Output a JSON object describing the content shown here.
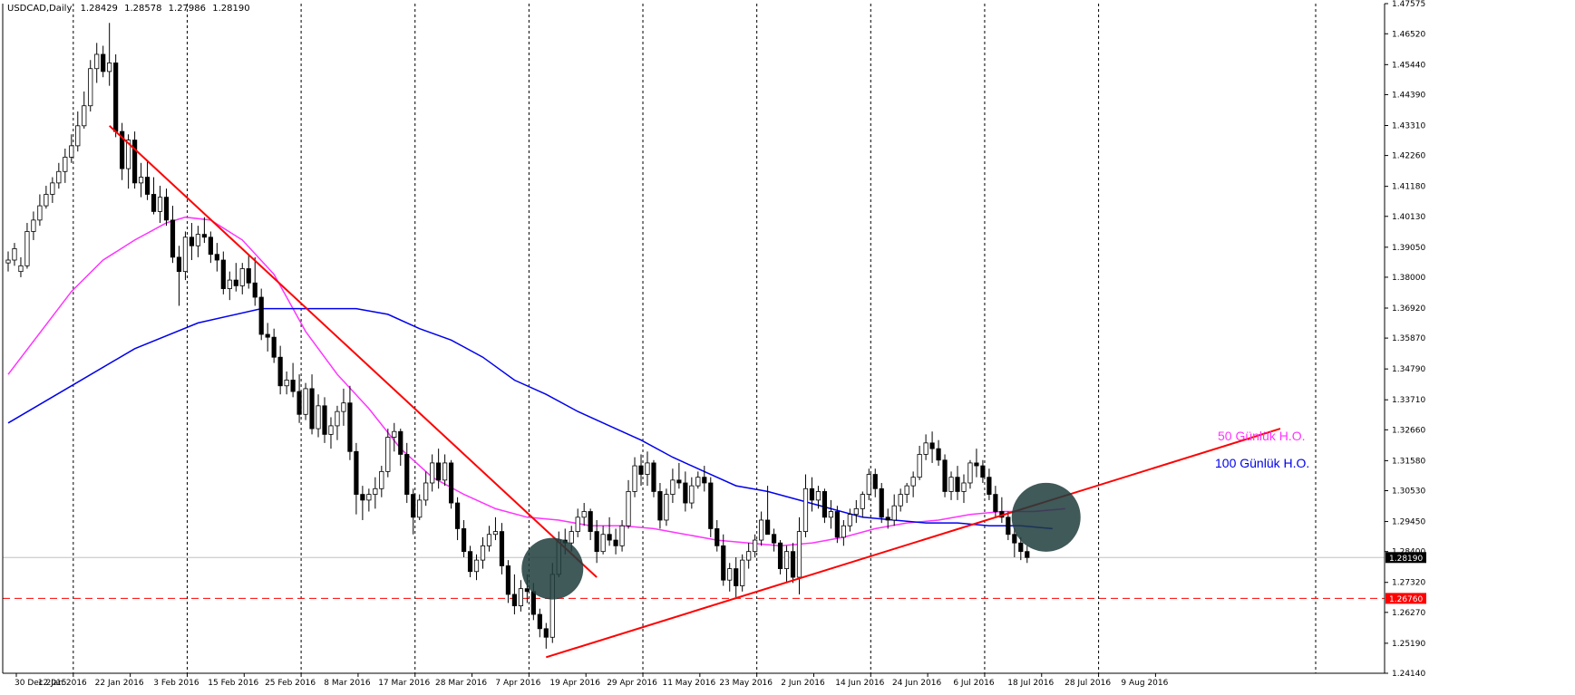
{
  "header": {
    "symbol": "USDCAD,Daily",
    "open": "1.28429",
    "high": "1.28578",
    "low": "1.27986",
    "close": "1.28190"
  },
  "chart_data": {
    "type": "candlestick",
    "x_ticks": [
      "30 Dec 2015",
      "12 Jan 2016",
      "22 Jan 2016",
      "3 Feb 2016",
      "15 Feb 2016",
      "25 Feb 2016",
      "8 Mar 2016",
      "17 Mar 2016",
      "28 Mar 2016",
      "7 Apr 2016",
      "19 Apr 2016",
      "29 Apr 2016",
      "11 May 2016",
      "23 May 2016",
      "2 Jun 2016",
      "14 Jun 2016",
      "24 Jun 2016",
      "6 Jul 2016",
      "18 Jul 2016",
      "28 Jul 2016",
      "9 Aug 2016"
    ],
    "y_ticks": [
      "1.47575",
      "1.46520",
      "1.45440",
      "1.44390",
      "1.43310",
      "1.42260",
      "1.41180",
      "1.40130",
      "1.39050",
      "1.38000",
      "1.36920",
      "1.35870",
      "1.34790",
      "1.33710",
      "1.32660",
      "1.31580",
      "1.30530",
      "1.29450",
      "1.28400",
      "1.27320",
      "1.26270",
      "1.25190",
      "1.24140"
    ],
    "ylim": [
      1.2414,
      1.47575
    ],
    "candles": [
      [
        1.385,
        1.389,
        1.382,
        1.386
      ],
      [
        1.386,
        1.392,
        1.384,
        1.39
      ],
      [
        1.382,
        1.387,
        1.38,
        1.384
      ],
      [
        1.384,
        1.399,
        1.383,
        1.396
      ],
      [
        1.396,
        1.403,
        1.393,
        1.4
      ],
      [
        1.4,
        1.409,
        1.398,
        1.405
      ],
      [
        1.405,
        1.412,
        1.404,
        1.409
      ],
      [
        1.409,
        1.415,
        1.406,
        1.413
      ],
      [
        1.413,
        1.42,
        1.411,
        1.417
      ],
      [
        1.417,
        1.425,
        1.413,
        1.422
      ],
      [
        1.422,
        1.43,
        1.42,
        1.426
      ],
      [
        1.426,
        1.438,
        1.424,
        1.433
      ],
      [
        1.433,
        1.445,
        1.432,
        1.44
      ],
      [
        1.44,
        1.456,
        1.438,
        1.453
      ],
      [
        1.453,
        1.462,
        1.448,
        1.458
      ],
      [
        1.458,
        1.461,
        1.45,
        1.452
      ],
      [
        1.452,
        1.469,
        1.447,
        1.455
      ],
      [
        1.455,
        1.458,
        1.429,
        1.431
      ],
      [
        1.431,
        1.434,
        1.414,
        1.418
      ],
      [
        1.418,
        1.43,
        1.411,
        1.428
      ],
      [
        1.428,
        1.431,
        1.411,
        1.413
      ],
      [
        1.413,
        1.42,
        1.408,
        1.415
      ],
      [
        1.415,
        1.421,
        1.407,
        1.409
      ],
      [
        1.409,
        1.415,
        1.402,
        1.403
      ],
      [
        1.403,
        1.412,
        1.399,
        1.408
      ],
      [
        1.408,
        1.411,
        1.398,
        1.4
      ],
      [
        1.4,
        1.405,
        1.385,
        1.387
      ],
      [
        1.387,
        1.391,
        1.37,
        1.382
      ],
      [
        1.382,
        1.396,
        1.379,
        1.394
      ],
      [
        1.394,
        1.399,
        1.386,
        1.391
      ],
      [
        1.391,
        1.398,
        1.387,
        1.395
      ],
      [
        1.395,
        1.401,
        1.392,
        1.394
      ],
      [
        1.394,
        1.396,
        1.385,
        1.388
      ],
      [
        1.388,
        1.392,
        1.382,
        1.386
      ],
      [
        1.386,
        1.389,
        1.374,
        1.376
      ],
      [
        1.376,
        1.382,
        1.372,
        1.379
      ],
      [
        1.379,
        1.385,
        1.375,
        1.377
      ],
      [
        1.377,
        1.385,
        1.374,
        1.383
      ],
      [
        1.383,
        1.388,
        1.376,
        1.378
      ],
      [
        1.378,
        1.387,
        1.37,
        1.373
      ],
      [
        1.373,
        1.376,
        1.358,
        1.36
      ],
      [
        1.36,
        1.364,
        1.354,
        1.359
      ],
      [
        1.359,
        1.362,
        1.35,
        1.352
      ],
      [
        1.352,
        1.356,
        1.339,
        1.342
      ],
      [
        1.342,
        1.347,
        1.339,
        1.344
      ],
      [
        1.344,
        1.35,
        1.338,
        1.34
      ],
      [
        1.34,
        1.346,
        1.329,
        1.332
      ],
      [
        1.332,
        1.343,
        1.33,
        1.341
      ],
      [
        1.341,
        1.346,
        1.325,
        1.327
      ],
      [
        1.327,
        1.339,
        1.324,
        1.335
      ],
      [
        1.335,
        1.338,
        1.322,
        1.325
      ],
      [
        1.325,
        1.331,
        1.32,
        1.328
      ],
      [
        1.328,
        1.335,
        1.323,
        1.333
      ],
      [
        1.333,
        1.341,
        1.328,
        1.336
      ],
      [
        1.336,
        1.342,
        1.316,
        1.319
      ],
      [
        1.319,
        1.322,
        1.297,
        1.304
      ],
      [
        1.304,
        1.307,
        1.295,
        1.302
      ],
      [
        1.302,
        1.306,
        1.298,
        1.304
      ],
      [
        1.304,
        1.31,
        1.299,
        1.306
      ],
      [
        1.306,
        1.314,
        1.303,
        1.312
      ],
      [
        1.312,
        1.327,
        1.31,
        1.324
      ],
      [
        1.324,
        1.329,
        1.319,
        1.326
      ],
      [
        1.326,
        1.327,
        1.314,
        1.318
      ],
      [
        1.318,
        1.322,
        1.301,
        1.304
      ],
      [
        1.304,
        1.306,
        1.29,
        1.296
      ],
      [
        1.296,
        1.304,
        1.295,
        1.302
      ],
      [
        1.302,
        1.312,
        1.3,
        1.308
      ],
      [
        1.308,
        1.318,
        1.305,
        1.315
      ],
      [
        1.315,
        1.32,
        1.306,
        1.309
      ],
      [
        1.309,
        1.318,
        1.307,
        1.315
      ],
      [
        1.315,
        1.316,
        1.299,
        1.301
      ],
      [
        1.301,
        1.303,
        1.288,
        1.292
      ],
      [
        1.292,
        1.295,
        1.282,
        1.284
      ],
      [
        1.284,
        1.286,
        1.275,
        1.277
      ],
      [
        1.277,
        1.283,
        1.274,
        1.281
      ],
      [
        1.281,
        1.289,
        1.278,
        1.286
      ],
      [
        1.286,
        1.293,
        1.284,
        1.29
      ],
      [
        1.29,
        1.296,
        1.288,
        1.291
      ],
      [
        1.291,
        1.294,
        1.276,
        1.279
      ],
      [
        1.279,
        1.281,
        1.266,
        1.269
      ],
      [
        1.269,
        1.276,
        1.262,
        1.265
      ],
      [
        1.265,
        1.274,
        1.263,
        1.271
      ],
      [
        1.271,
        1.276,
        1.266,
        1.27
      ],
      [
        1.27,
        1.273,
        1.26,
        1.262
      ],
      [
        1.262,
        1.264,
        1.254,
        1.257
      ],
      [
        1.257,
        1.259,
        1.25,
        1.254
      ],
      [
        1.254,
        1.28,
        1.252,
        1.276
      ],
      [
        1.276,
        1.291,
        1.275,
        1.288
      ],
      [
        1.288,
        1.292,
        1.283,
        1.287
      ],
      [
        1.287,
        1.293,
        1.284,
        1.291
      ],
      [
        1.291,
        1.299,
        1.289,
        1.296
      ],
      [
        1.296,
        1.301,
        1.293,
        1.298
      ],
      [
        1.298,
        1.299,
        1.288,
        1.291
      ],
      [
        1.291,
        1.295,
        1.28,
        1.284
      ],
      [
        1.284,
        1.293,
        1.283,
        1.29
      ],
      [
        1.29,
        1.296,
        1.286,
        1.288
      ],
      [
        1.288,
        1.292,
        1.283,
        1.286
      ],
      [
        1.286,
        1.295,
        1.284,
        1.293
      ],
      [
        1.293,
        1.309,
        1.292,
        1.305
      ],
      [
        1.305,
        1.317,
        1.303,
        1.314
      ],
      [
        1.314,
        1.318,
        1.307,
        1.311
      ],
      [
        1.311,
        1.319,
        1.307,
        1.315
      ],
      [
        1.315,
        1.316,
        1.303,
        1.305
      ],
      [
        1.305,
        1.308,
        1.292,
        1.295
      ],
      [
        1.295,
        1.306,
        1.293,
        1.304
      ],
      [
        1.304,
        1.313,
        1.301,
        1.309
      ],
      [
        1.309,
        1.315,
        1.306,
        1.308
      ],
      [
        1.308,
        1.312,
        1.298,
        1.301
      ],
      [
        1.301,
        1.31,
        1.299,
        1.307
      ],
      [
        1.307,
        1.312,
        1.306,
        1.31
      ],
      [
        1.31,
        1.314,
        1.305,
        1.308
      ],
      [
        1.308,
        1.31,
        1.289,
        1.292
      ],
      [
        1.292,
        1.295,
        1.284,
        1.286
      ],
      [
        1.286,
        1.29,
        1.272,
        1.274
      ],
      [
        1.274,
        1.28,
        1.27,
        1.278
      ],
      [
        1.278,
        1.282,
        1.268,
        1.272
      ],
      [
        1.272,
        1.283,
        1.27,
        1.281
      ],
      [
        1.281,
        1.287,
        1.278,
        1.284
      ],
      [
        1.284,
        1.29,
        1.282,
        1.288
      ],
      [
        1.288,
        1.298,
        1.286,
        1.295
      ],
      [
        1.295,
        1.307,
        1.292,
        1.29
      ],
      [
        1.29,
        1.292,
        1.284,
        1.287
      ],
      [
        1.287,
        1.288,
        1.276,
        1.278
      ],
      [
        1.278,
        1.286,
        1.273,
        1.284
      ],
      [
        1.284,
        1.287,
        1.273,
        1.275
      ],
      [
        1.275,
        1.296,
        1.269,
        1.291
      ],
      [
        1.291,
        1.311,
        1.289,
        1.306
      ],
      [
        1.306,
        1.31,
        1.298,
        1.302
      ],
      [
        1.302,
        1.307,
        1.299,
        1.305
      ],
      [
        1.305,
        1.306,
        1.294,
        1.296
      ],
      [
        1.296,
        1.302,
        1.292,
        1.298
      ],
      [
        1.298,
        1.3,
        1.287,
        1.289
      ],
      [
        1.289,
        1.295,
        1.286,
        1.293
      ],
      [
        1.293,
        1.299,
        1.291,
        1.297
      ],
      [
        1.297,
        1.302,
        1.294,
        1.299
      ],
      [
        1.299,
        1.305,
        1.296,
        1.304
      ],
      [
        1.304,
        1.313,
        1.302,
        1.311
      ],
      [
        1.311,
        1.313,
        1.303,
        1.306
      ],
      [
        1.306,
        1.308,
        1.294,
        1.296
      ],
      [
        1.296,
        1.299,
        1.292,
        1.295
      ],
      [
        1.295,
        1.304,
        1.293,
        1.3
      ],
      [
        1.3,
        1.306,
        1.298,
        1.304
      ],
      [
        1.304,
        1.308,
        1.301,
        1.307
      ],
      [
        1.307,
        1.312,
        1.303,
        1.31
      ],
      [
        1.31,
        1.321,
        1.309,
        1.318
      ],
      [
        1.318,
        1.325,
        1.316,
        1.322
      ],
      [
        1.322,
        1.326,
        1.315,
        1.32
      ],
      [
        1.32,
        1.323,
        1.314,
        1.316
      ],
      [
        1.316,
        1.318,
        1.303,
        1.305
      ],
      [
        1.305,
        1.312,
        1.302,
        1.31
      ],
      [
        1.31,
        1.314,
        1.302,
        1.305
      ],
      [
        1.305,
        1.311,
        1.301,
        1.308
      ],
      [
        1.308,
        1.316,
        1.306,
        1.315
      ],
      [
        1.315,
        1.32,
        1.31,
        1.314
      ],
      [
        1.314,
        1.316,
        1.308,
        1.31
      ],
      [
        1.31,
        1.313,
        1.302,
        1.304
      ],
      [
        1.304,
        1.307,
        1.296,
        1.298
      ],
      [
        1.298,
        1.303,
        1.294,
        1.296
      ],
      [
        1.296,
        1.298,
        1.288,
        1.29
      ],
      [
        1.29,
        1.292,
        1.282,
        1.287
      ],
      [
        1.287,
        1.289,
        1.281,
        1.284
      ],
      [
        1.284,
        1.286,
        1.28,
        1.2819
      ]
    ],
    "series": [
      {
        "name": "50 Günlük H.O.",
        "color": "#ff33ff",
        "x_index": [
          0,
          10,
          15,
          20,
          25,
          28,
          32,
          37,
          42,
          47,
          52,
          57,
          62,
          67,
          72,
          77,
          82,
          87,
          92,
          97,
          102,
          107,
          112,
          117,
          122,
          127,
          132,
          137,
          142,
          147,
          152,
          157,
          162,
          167
        ],
        "values": [
          1.346,
          1.375,
          1.386,
          1.393,
          1.399,
          1.401,
          1.4,
          1.393,
          1.381,
          1.361,
          1.346,
          1.334,
          1.32,
          1.31,
          1.304,
          1.299,
          1.296,
          1.295,
          1.293,
          1.293,
          1.292,
          1.29,
          1.288,
          1.287,
          1.286,
          1.287,
          1.289,
          1.292,
          1.294,
          1.295,
          1.297,
          1.298,
          1.298,
          1.299
        ]
      },
      {
        "name": "100 Günlük H.O.",
        "color": "#0000ee",
        "x_index": [
          0,
          10,
          20,
          30,
          40,
          45,
          50,
          55,
          60,
          65,
          70,
          75,
          80,
          85,
          90,
          95,
          100,
          105,
          110,
          115,
          120,
          125,
          130,
          135,
          140,
          145,
          150,
          155,
          160,
          165
        ],
        "values": [
          1.329,
          1.342,
          1.355,
          1.364,
          1.369,
          1.369,
          1.369,
          1.369,
          1.367,
          1.362,
          1.358,
          1.352,
          1.344,
          1.339,
          1.333,
          1.328,
          1.323,
          1.317,
          1.312,
          1.307,
          1.305,
          1.302,
          1.299,
          1.296,
          1.295,
          1.294,
          1.294,
          1.293,
          1.293,
          1.292
        ]
      }
    ],
    "trendlines": [
      {
        "x1_index": 16,
        "y1": 1.433,
        "x2_index": 93,
        "y2": 1.275,
        "color": "#ff0000"
      },
      {
        "x1_index": 85,
        "y1": 1.247,
        "x2_index": 201,
        "y2": 1.327,
        "color": "#ff0000"
      }
    ],
    "hline": {
      "value": 1.2676,
      "label": "1.26760",
      "color": "#ff0000"
    },
    "current_price": {
      "value": 1.2819,
      "label": "1.28190"
    },
    "highlight_circles": [
      {
        "x_index": 86,
        "y": 1.278
      },
      {
        "x_index": 164,
        "y": 1.296
      }
    ],
    "annotations": [
      {
        "text": "50 Günlük H.O.",
        "color": "#ff33ff"
      },
      {
        "text": "100 Günlük H.O.",
        "color": "#0000ee"
      }
    ]
  }
}
